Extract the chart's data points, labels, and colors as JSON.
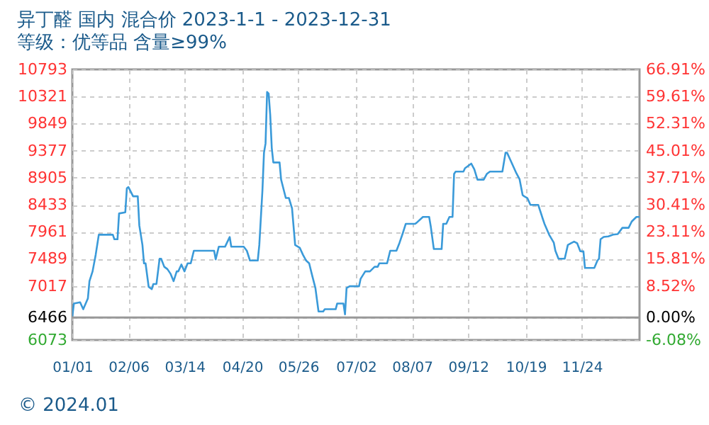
{
  "chart_data": {
    "type": "line",
    "title": "异丁醛 国内 混合价 2023-1-1 - 2023-12-31",
    "subtitle": "等级：优等品 含量≥99%",
    "x": [
      "2023-01-01",
      "2023-01-02",
      "2023-01-06",
      "2023-01-08",
      "2023-01-11",
      "2023-01-12",
      "2023-01-14",
      "2023-01-16",
      "2023-01-18",
      "2023-01-27",
      "2023-01-28",
      "2023-01-30",
      "2023-01-31",
      "2023-02-04",
      "2023-02-05",
      "2023-02-06",
      "2023-02-09",
      "2023-02-12",
      "2023-02-13",
      "2023-02-15",
      "2023-02-16",
      "2023-02-17",
      "2023-02-19",
      "2023-02-21",
      "2023-02-22",
      "2023-02-24",
      "2023-02-26",
      "2023-02-27",
      "2023-03-01",
      "2023-03-03",
      "2023-03-05",
      "2023-03-07",
      "2023-03-09",
      "2023-03-10",
      "2023-03-12",
      "2023-03-14",
      "2023-03-16",
      "2023-03-18",
      "2023-03-20",
      "2023-04-02",
      "2023-04-03",
      "2023-04-05",
      "2023-04-09",
      "2023-04-12",
      "2023-04-13",
      "2023-04-21",
      "2023-04-23",
      "2023-04-25",
      "2023-04-30",
      "2023-05-01",
      "2023-05-03",
      "2023-05-04",
      "2023-05-05",
      "2023-05-06",
      "2023-05-07",
      "2023-05-08",
      "2023-05-09",
      "2023-05-10",
      "2023-05-14",
      "2023-05-15",
      "2023-05-18",
      "2023-05-20",
      "2023-05-22",
      "2023-05-24",
      "2023-05-27",
      "2023-05-29",
      "2023-05-31",
      "2023-06-02",
      "2023-06-04",
      "2023-06-06",
      "2023-06-08",
      "2023-06-11",
      "2023-06-12",
      "2023-06-19",
      "2023-06-20",
      "2023-06-24",
      "2023-06-25",
      "2023-06-26",
      "2023-06-28",
      "2023-07-04",
      "2023-07-05",
      "2023-07-08",
      "2023-07-11",
      "2023-07-14",
      "2023-07-16",
      "2023-07-17",
      "2023-07-22",
      "2023-07-24",
      "2023-07-28",
      "2023-07-30",
      "2023-08-01",
      "2023-08-03",
      "2023-08-09",
      "2023-08-10",
      "2023-08-14",
      "2023-08-18",
      "2023-08-19",
      "2023-08-21",
      "2023-08-26",
      "2023-08-27",
      "2023-08-29",
      "2023-08-31",
      "2023-09-02",
      "2023-09-03",
      "2023-09-04",
      "2023-09-09",
      "2023-09-10",
      "2023-09-14",
      "2023-09-16",
      "2023-09-18",
      "2023-09-22",
      "2023-09-24",
      "2023-09-26",
      "2023-10-04",
      "2023-10-06",
      "2023-10-07",
      "2023-10-09",
      "2023-10-13",
      "2023-10-15",
      "2023-10-17",
      "2023-10-18",
      "2023-10-20",
      "2023-10-22",
      "2023-10-27",
      "2023-10-30",
      "2023-10-31",
      "2023-11-03",
      "2023-11-06",
      "2023-11-07",
      "2023-11-09",
      "2023-11-13",
      "2023-11-15",
      "2023-11-17",
      "2023-11-19",
      "2023-11-21",
      "2023-11-23",
      "2023-11-25",
      "2023-11-26",
      "2023-12-02",
      "2023-12-04",
      "2023-12-05",
      "2023-12-06",
      "2023-12-08",
      "2023-12-11",
      "2023-12-14",
      "2023-12-17",
      "2023-12-20",
      "2023-12-24",
      "2023-12-26",
      "2023-12-29",
      "2023-12-31"
    ],
    "series": [
      {
        "color": "#3a9ad9",
        "values": [
          6480,
          6710,
          6730,
          6610,
          6800,
          7100,
          7270,
          7560,
          7910,
          7910,
          7830,
          7830,
          8280,
          8300,
          8720,
          8740,
          8580,
          8580,
          8070,
          7730,
          7410,
          7410,
          7000,
          6960,
          7050,
          7050,
          7490,
          7490,
          7350,
          7310,
          7230,
          7100,
          7270,
          7270,
          7390,
          7270,
          7410,
          7410,
          7630,
          7630,
          7480,
          7700,
          7700,
          7870,
          7700,
          7700,
          7630,
          7460,
          7460,
          7730,
          8680,
          9340,
          9500,
          10400,
          10370,
          10000,
          9420,
          9170,
          9170,
          8870,
          8550,
          8550,
          8370,
          7730,
          7680,
          7560,
          7460,
          7410,
          7190,
          6980,
          6570,
          6570,
          6610,
          6610,
          6710,
          6710,
          6520,
          6980,
          7010,
          7010,
          7140,
          7270,
          7270,
          7350,
          7350,
          7410,
          7410,
          7630,
          7630,
          7770,
          7930,
          8100,
          8100,
          8120,
          8220,
          8220,
          8060,
          7660,
          7660,
          8100,
          8100,
          8220,
          8220,
          8970,
          9010,
          9010,
          9070,
          9150,
          9050,
          8870,
          8870,
          8970,
          9010,
          9010,
          9340,
          9340,
          9220,
          8980,
          8880,
          8600,
          8580,
          8550,
          8430,
          8430,
          8180,
          8100,
          7910,
          7770,
          7630,
          7490,
          7490,
          7730,
          7760,
          7790,
          7760,
          7620,
          7620,
          7330,
          7330,
          7460,
          7490,
          7830,
          7870,
          7880,
          7910,
          7920,
          8030,
          8030,
          8140,
          8220,
          8220
        ]
      }
    ],
    "xlim": [
      "2023-01-01",
      "2023-12-31"
    ],
    "xticks": [
      {
        "value": "2023-01-01",
        "label": "01/01"
      },
      {
        "value": "2023-02-06",
        "label": "02/06"
      },
      {
        "value": "2023-03-14",
        "label": "03/14"
      },
      {
        "value": "2023-04-20",
        "label": "04/20"
      },
      {
        "value": "2023-05-26",
        "label": "05/26"
      },
      {
        "value": "2023-07-02",
        "label": "07/02"
      },
      {
        "value": "2023-08-07",
        "label": "08/07"
      },
      {
        "value": "2023-09-12",
        "label": "09/12"
      },
      {
        "value": "2023-10-19",
        "label": "10/19"
      },
      {
        "value": "2023-11-24",
        "label": "11/24"
      }
    ],
    "ylim": [
      6073,
      10793
    ],
    "yticks": [
      6073,
      6466,
      7017,
      7489,
      7961,
      8433,
      8905,
      9377,
      9849,
      10321,
      10793
    ],
    "y2lim": [
      -6.08,
      66.91
    ],
    "y2ticks": [
      {
        "value": -6.08,
        "label": "-6.08%"
      },
      {
        "value": 0,
        "label": "0.00%"
      },
      {
        "value": 8.52,
        "label": "8.52%"
      },
      {
        "value": 15.81,
        "label": "15.81%"
      },
      {
        "value": 23.11,
        "label": "23.11%"
      },
      {
        "value": 30.41,
        "label": "30.41%"
      },
      {
        "value": 37.71,
        "label": "37.71%"
      },
      {
        "value": 45.01,
        "label": "45.01%"
      },
      {
        "value": 52.31,
        "label": "52.31%"
      },
      {
        "value": 59.61,
        "label": "59.61%"
      },
      {
        "value": 66.91,
        "label": "66.91%"
      }
    ],
    "ref_lines": [
      {
        "axis": "y",
        "value": 6466,
        "color": "#999999"
      }
    ],
    "grid": true,
    "marker": "none",
    "line_style": "solid",
    "annotations": [
      "© 2024.01"
    ]
  }
}
